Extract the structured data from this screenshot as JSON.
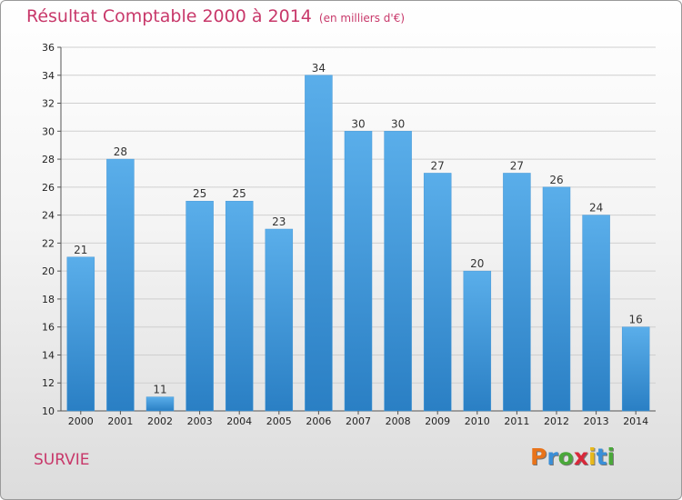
{
  "header": {
    "title": "Résultat Comptable 2000 à 2014",
    "subtitle": "(en milliers d'€)"
  },
  "footer": {
    "commune": "SURVIE",
    "logo_letters": [
      "P",
      "r",
      "o",
      "x",
      "i",
      "t",
      "i"
    ],
    "logo_colors": [
      "#e8731a",
      "#3a8fd8",
      "#4aa83a",
      "#d8283a",
      "#e8b81a",
      "#3a8fd8",
      "#4aa83a"
    ]
  },
  "chart_data": {
    "type": "bar",
    "title": "Résultat Comptable 2000 à 2014",
    "subtitle": "(en milliers d'€)",
    "categories": [
      "2000",
      "2001",
      "2002",
      "2003",
      "2004",
      "2005",
      "2006",
      "2007",
      "2008",
      "2009",
      "2010",
      "2011",
      "2012",
      "2013",
      "2014"
    ],
    "values": [
      21,
      28,
      11,
      25,
      25,
      23,
      34,
      30,
      30,
      27,
      20,
      27,
      26,
      24,
      16
    ],
    "ylim": [
      10,
      36
    ],
    "yticks": [
      10,
      12,
      14,
      16,
      18,
      20,
      22,
      24,
      26,
      28,
      30,
      32,
      34,
      36
    ],
    "grid": true,
    "xlabel": "",
    "ylabel": "",
    "bar_color_top": "#5aaeea",
    "bar_color_bottom": "#2a7fc4",
    "grid_color": "#cfcfcf"
  }
}
